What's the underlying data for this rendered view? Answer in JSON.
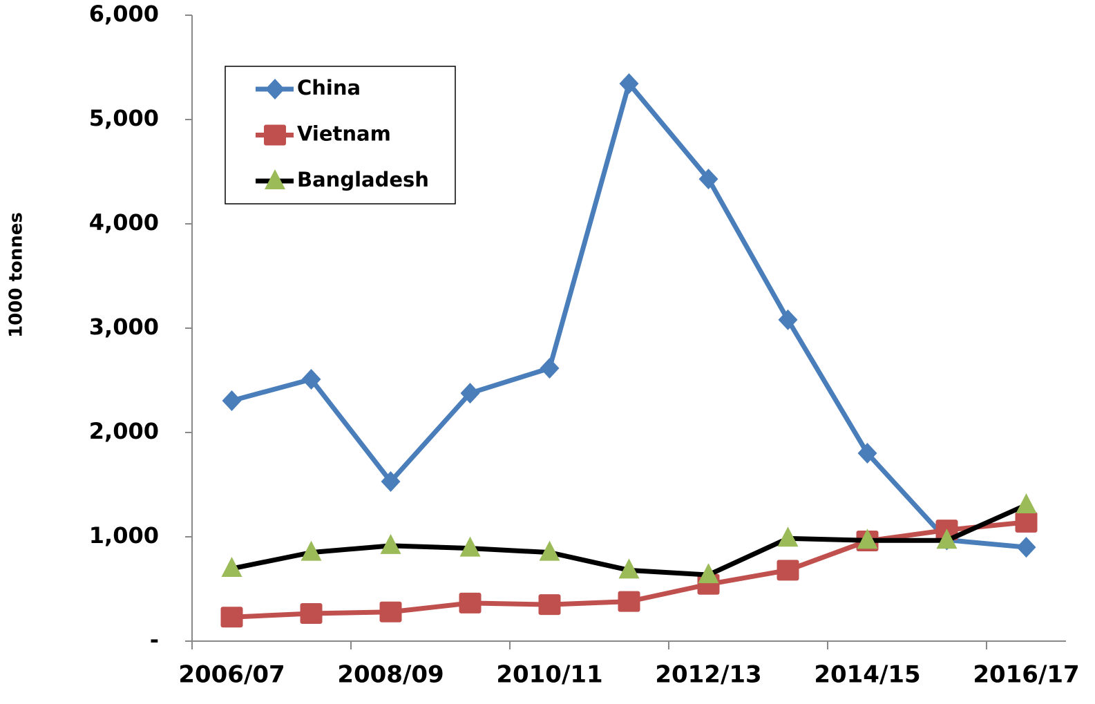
{
  "chart_data": {
    "type": "line",
    "y_label": "1000 tonnes",
    "categories": [
      "2006/07",
      null,
      "2008/09",
      null,
      "2010/11",
      null,
      "2012/13",
      null,
      "2014/15",
      null,
      "2016/17"
    ],
    "series": [
      {
        "name": "China",
        "color": "#4a7ebb",
        "marker": "diamond",
        "marker_color": "#4a7ebb",
        "values": [
          2305,
          2510,
          1530,
          2377,
          2616,
          5344,
          4430,
          3080,
          1801,
          970,
          900
        ]
      },
      {
        "name": "Vietnam",
        "color": "#c0504d",
        "marker": "square",
        "marker_color": "#c0504d",
        "values": [
          230,
          265,
          280,
          365,
          350,
          380,
          545,
          680,
          960,
          1065,
          1140
        ]
      },
      {
        "name": "Bangladesh",
        "color": "#000000",
        "marker": "triangle",
        "marker_color": "#9bbb59",
        "values": [
          695,
          850,
          915,
          890,
          850,
          680,
          635,
          985,
          965,
          965,
          1305
        ]
      }
    ],
    "ylim": [
      0,
      6000
    ],
    "yticks": [
      {
        "value": 0,
        "label": "-"
      },
      {
        "value": 1000,
        "label": "1,000"
      },
      {
        "value": 2000,
        "label": "2,000"
      },
      {
        "value": 3000,
        "label": "3,000"
      },
      {
        "value": 4000,
        "label": "4,000"
      },
      {
        "value": 5000,
        "label": "5,000"
      },
      {
        "value": 6000,
        "label": "6,000"
      }
    ],
    "grid": false,
    "legend": "top-left"
  }
}
